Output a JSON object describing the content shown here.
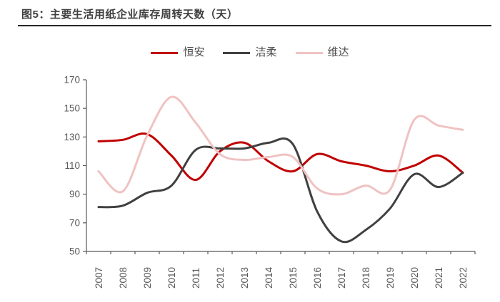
{
  "figure": {
    "title": "图5：主要生活用纸企业库存周转天数（天）"
  },
  "chart_data": {
    "type": "line",
    "title": "主要生活用纸企业库存周转天数（天）",
    "unit": "天",
    "categories": [
      "2007",
      "2008",
      "2009",
      "2010",
      "2011",
      "2012",
      "2013",
      "2014",
      "2015",
      "2016",
      "2017",
      "2018",
      "2019",
      "2020",
      "2021",
      "2022"
    ],
    "series": [
      {
        "name": "恒安",
        "color": "#c00000",
        "values": [
          127,
          128,
          132,
          117,
          100,
          120,
          126,
          113,
          106,
          118,
          113,
          110,
          106,
          110,
          117,
          105
        ]
      },
      {
        "name": "洁柔",
        "color": "#404040",
        "values": [
          81,
          82,
          91,
          96,
          121,
          122,
          122,
          126,
          125,
          78,
          57,
          65,
          80,
          104,
          95,
          105
        ]
      },
      {
        "name": "维达",
        "color": "#f0c2c2",
        "values": [
          106,
          92,
          131,
          158,
          140,
          118,
          114,
          116,
          116,
          94,
          90,
          96,
          93,
          142,
          138,
          135
        ]
      }
    ],
    "ylim": [
      50,
      170
    ],
    "yticks": [
      50,
      70,
      90,
      110,
      130,
      150,
      170
    ],
    "xlabel": "",
    "ylabel": "",
    "grid": false,
    "legend_position": "top",
    "x_label_rotation": -90,
    "axis_color": "#595959",
    "tick_label_color": "#595959",
    "line_smoothing": true
  }
}
